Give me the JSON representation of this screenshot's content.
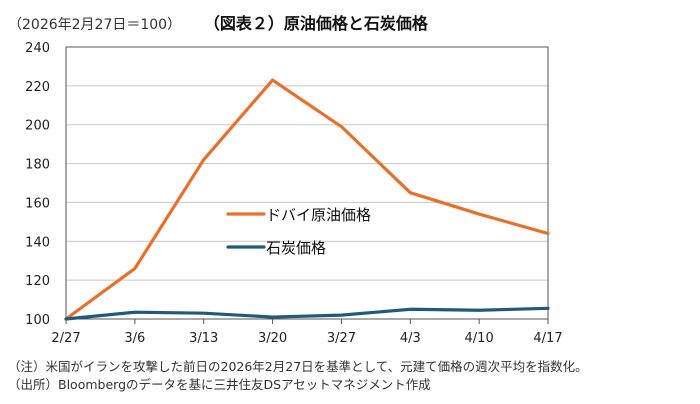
{
  "header": {
    "unit": "（2026年2月27日＝100）",
    "title": "（図表２）原油価格と石炭価格"
  },
  "chart_data": {
    "type": "line",
    "categories": [
      "2/27",
      "3/6",
      "3/13",
      "3/20",
      "3/27",
      "4/3",
      "4/10",
      "4/17"
    ],
    "series": [
      {
        "name": "ドバイ原油価格",
        "color": "#e8702a",
        "values": [
          100,
          126,
          182,
          223,
          199,
          165,
          154,
          144
        ]
      },
      {
        "name": "石炭価格",
        "color": "#1f5a7a",
        "values": [
          100,
          103.5,
          103,
          101,
          102,
          105,
          104.5,
          105.5
        ]
      }
    ],
    "yticks": [
      100,
      120,
      140,
      160,
      180,
      200,
      220,
      240
    ],
    "ylim": [
      100,
      240
    ],
    "grid": true,
    "legend": "center"
  },
  "notes": [
    "（注）米国がイランを攻撃した前日の2026年2月27日を基準として、元建て価格の週次平均を指数化。",
    "（出所）Bloombergのデータを基に三井住友DSアセットマネジメント作成"
  ]
}
